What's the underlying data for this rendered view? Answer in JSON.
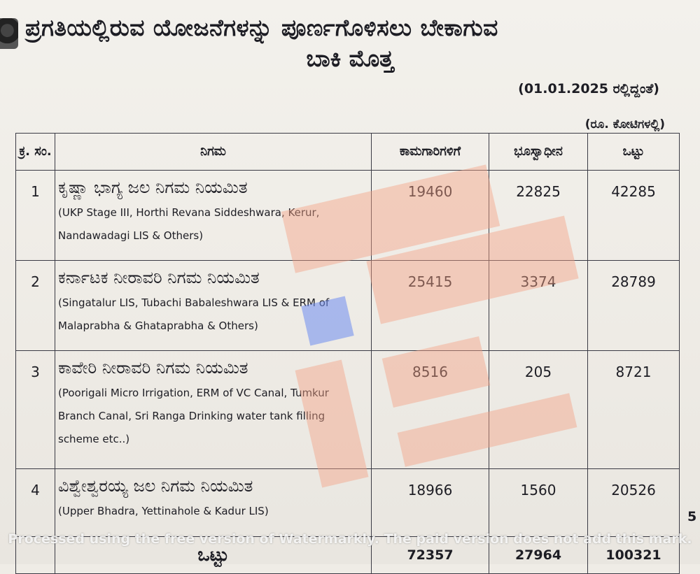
{
  "header": {
    "title_line1": "ಪ್ರಗತಿಯಲ್ಲಿರುವ ಯೋಜನೆಗಳನ್ನು ಪೂರ್ಣಗೊಳಿಸಲು ಬೇಕಾಗುವ",
    "title_line2": "ಬಾಕಿ ಮೊತ್ತ",
    "as_of": "(01.01.2025 ರಲ್ಲಿದ್ದಂತೆ)",
    "unit": "(ರೂ. ಕೋಟಿಗಳಲ್ಲಿ)"
  },
  "table": {
    "headers": {
      "sl_no": "ಕ್ರ. ಸಂ.",
      "corporation": "ನಿಗಮ",
      "works": "ಕಾಮಗಾರಿಗಳಿಗೆ",
      "land": "ಭೂಸ್ವಾಧೀನ",
      "total": "ಒಟ್ಟು"
    },
    "rows": [
      {
        "no": "1",
        "name": "ಕೃಷ್ಣಾ ಭಾಗ್ಯ ಜಲ ನಿಗಮ ನಿಯಮಿತ",
        "sub": "(UKP Stage III, Horthi Revana Siddeshwara, Kerur, Nandawadagi LIS & Others)",
        "works": "19460",
        "land": "22825",
        "total": "42285"
      },
      {
        "no": "2",
        "name": "ಕರ್ನಾಟಕ ನೀರಾವರಿ ನಿಗಮ ನಿಯಮಿತ",
        "sub": "(Singatalur LIS, Tubachi Babaleshwara LIS & ERM of Malaprabha & Ghataprabha & Others)",
        "works": "25415",
        "land": "3374",
        "total": "28789"
      },
      {
        "no": "3",
        "name": "ಕಾವೇರಿ ನೀರಾವರಿ ನಿಗಮ ನಿಯಮಿತ",
        "sub": "(Poorigali Micro Irrigation, ERM of VC Canal, Tumkur Branch Canal, Sri Ranga Drinking water tank filling scheme etc..)",
        "works": "8516",
        "land": "205",
        "total": "8721"
      },
      {
        "no": "4",
        "name": "ವಿಶ್ವೇಶ್ವರಯ್ಯ ಜಲ ನಿಗಮ ನಿಯಮಿತ",
        "sub": "(Upper Bhadra, Yettinahole & Kadur LIS)",
        "works": "18966",
        "land": "1560",
        "total": "20526"
      }
    ],
    "totals": {
      "label": "ಒಟ್ಟು",
      "works": "72357",
      "land": "27964",
      "total": "100321"
    }
  },
  "page_number": "5",
  "watermark_notice": "Processed using the free version of Watermarkly. The paid version does not add this mark."
}
